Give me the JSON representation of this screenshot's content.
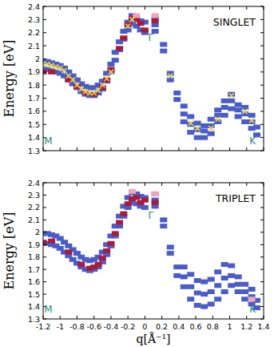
{
  "chart_data": [
    {
      "type": "scatter",
      "title": "SINGLET",
      "ylabel": "Energy [eV]",
      "xlim": [
        -1.2,
        1.4
      ],
      "xticks": [
        -1.2,
        -1,
        -0.8,
        -0.6,
        -0.4,
        -0.2,
        0,
        0.2,
        0.4,
        0.6,
        0.8,
        1,
        1.2,
        1.4
      ],
      "ylim": [
        1.3,
        2.4
      ],
      "yticks": [
        1.3,
        1.4,
        1.5,
        1.6,
        1.7,
        1.8,
        1.9,
        2,
        2.1,
        2.2,
        2.3,
        2.4
      ],
      "grid": false,
      "tick_labels": "y",
      "annotations": [
        {
          "text": "Γ",
          "x": 0.07,
          "y": 2.14
        },
        {
          "text": "M",
          "x": -1.14,
          "y": 1.35
        },
        {
          "text": "K",
          "x": 1.27,
          "y": 1.35
        }
      ],
      "series": [
        {
          "color": "#4a5cc8",
          "marker": "rect",
          "x": [
            -1.2,
            -1.2,
            -1.15,
            -1.15,
            -1.1,
            -1.1,
            -1.05,
            -1.05,
            -1.0,
            -1.0,
            -0.95,
            -0.95,
            -0.9,
            -0.9,
            -0.85,
            -0.85,
            -0.8,
            -0.8,
            -0.75,
            -0.75,
            -0.7,
            -0.7,
            -0.65,
            -0.65,
            -0.6,
            -0.6,
            -0.55,
            -0.55,
            -0.5,
            -0.5,
            -0.45,
            -0.45,
            -0.4,
            -0.4,
            -0.35,
            -0.35,
            -0.3,
            -0.3,
            -0.25,
            -0.25,
            -0.2,
            -0.2,
            -0.15,
            -0.15,
            -0.1,
            -0.1,
            -0.05,
            -0.05,
            0,
            0,
            0.12,
            0.12,
            0.12,
            0.22,
            0.22,
            0.3,
            0.3,
            0.38,
            0.38,
            0.46,
            0.46,
            0.46,
            0.54,
            0.54,
            0.54,
            0.62,
            0.62,
            0.62,
            0.7,
            0.7,
            0.7,
            0.78,
            0.78,
            0.78,
            0.86,
            0.86,
            0.86,
            0.94,
            0.94,
            0.94,
            1.02,
            1.02,
            1.02,
            1.1,
            1.1,
            1.1,
            1.18,
            1.18,
            1.18,
            1.26,
            1.26,
            1.26,
            1.32,
            1.32
          ],
          "values": [
            1.92,
            1.98,
            1.92,
            1.98,
            1.91,
            1.97,
            1.9,
            1.96,
            1.89,
            1.95,
            1.87,
            1.93,
            1.84,
            1.9,
            1.81,
            1.87,
            1.78,
            1.84,
            1.75,
            1.81,
            1.73,
            1.79,
            1.72,
            1.78,
            1.72,
            1.78,
            1.74,
            1.8,
            1.77,
            1.83,
            1.83,
            1.89,
            1.9,
            1.96,
            1.99,
            2.05,
            2.07,
            2.13,
            2.15,
            2.21,
            2.22,
            2.28,
            2.27,
            2.33,
            2.25,
            2.31,
            2.22,
            2.29,
            2.2,
            2.28,
            2.21,
            2.26,
            2.31,
            2.06,
            2.11,
            1.84,
            1.89,
            1.69,
            1.74,
            1.52,
            1.58,
            1.64,
            1.44,
            1.5,
            1.56,
            1.4,
            1.46,
            1.51,
            1.4,
            1.45,
            1.49,
            1.43,
            1.49,
            1.54,
            1.52,
            1.57,
            1.61,
            1.57,
            1.63,
            1.68,
            1.62,
            1.68,
            1.73,
            1.56,
            1.61,
            1.65,
            1.52,
            1.58,
            1.63,
            1.47,
            1.52,
            1.57,
            1.42,
            1.48
          ]
        },
        {
          "color": "#a81c3a",
          "marker": "rect",
          "x": [
            -1.2,
            -1.1,
            -0.9,
            -0.8,
            -0.7,
            -0.6,
            -0.5,
            -0.45,
            -0.4,
            -0.3,
            -0.25,
            -0.2,
            -0.15,
            -0.1,
            -0.05,
            0,
            0.12
          ],
          "values": [
            1.9,
            1.9,
            1.84,
            1.79,
            1.74,
            1.73,
            1.78,
            1.84,
            1.92,
            2.08,
            2.16,
            2.26,
            2.31,
            2.3,
            2.27,
            2.22,
            2.29
          ]
        },
        {
          "color": "#f0a6b8",
          "marker": "rect",
          "x": [
            -0.1,
            0.12
          ],
          "values": [
            2.33,
            2.33
          ]
        },
        {
          "color": "#e8d44a",
          "marker": "x",
          "x": [
            -1.2,
            -1.15,
            -1.1,
            -1.05,
            -1.0,
            -0.95,
            -0.9,
            -0.85,
            -0.8,
            -0.75,
            -0.7,
            -0.65,
            -0.6,
            -0.55,
            -0.5,
            -0.45,
            -0.4,
            -0.2,
            -0.15,
            0.3,
            0.54,
            0.62,
            0.78,
            0.86,
            1.02,
            1.18,
            1.26
          ],
          "values": [
            1.96,
            1.96,
            1.95,
            1.94,
            1.93,
            1.91,
            1.87,
            1.84,
            1.8,
            1.77,
            1.75,
            1.74,
            1.74,
            1.76,
            1.8,
            1.85,
            1.9,
            2.25,
            2.3,
            1.87,
            1.51,
            1.47,
            1.47,
            1.54,
            1.72,
            1.6,
            1.53
          ]
        }
      ]
    },
    {
      "type": "scatter",
      "title": "TRIPLET",
      "ylabel": "Energy [eV]",
      "xlabel": "q[Å⁻¹]",
      "xlim": [
        -1.2,
        1.4
      ],
      "xticks": [
        -1.2,
        -1,
        -0.8,
        -0.6,
        -0.4,
        -0.2,
        0,
        0.2,
        0.4,
        0.6,
        0.8,
        1,
        1.2,
        1.4
      ],
      "ylim": [
        1.3,
        2.4
      ],
      "yticks": [
        1.3,
        1.4,
        1.5,
        1.6,
        1.7,
        1.8,
        1.9,
        2,
        2.1,
        2.2,
        2.3,
        2.4
      ],
      "grid": false,
      "tick_labels": true,
      "annotations": [
        {
          "text": "Γ",
          "x": 0.07,
          "y": 2.11
        },
        {
          "text": "M",
          "x": -1.14,
          "y": 1.35
        },
        {
          "text": "K",
          "x": 1.27,
          "y": 1.35
        }
      ],
      "series": [
        {
          "color": "#4a5cc8",
          "marker": "rect",
          "x": [
            -1.2,
            -1.2,
            -1.15,
            -1.15,
            -1.1,
            -1.1,
            -1.05,
            -1.05,
            -1.0,
            -1.0,
            -0.95,
            -0.95,
            -0.9,
            -0.9,
            -0.85,
            -0.85,
            -0.8,
            -0.8,
            -0.75,
            -0.75,
            -0.7,
            -0.7,
            -0.65,
            -0.65,
            -0.6,
            -0.6,
            -0.55,
            -0.55,
            -0.5,
            -0.5,
            -0.45,
            -0.45,
            -0.4,
            -0.4,
            -0.35,
            -0.35,
            -0.3,
            -0.3,
            -0.25,
            -0.25,
            -0.2,
            -0.2,
            -0.15,
            -0.15,
            -0.1,
            -0.1,
            -0.05,
            -0.05,
            0,
            0,
            0.12,
            0.12,
            0.12,
            0.22,
            0.22,
            0.3,
            0.3,
            0.38,
            0.38,
            0.46,
            0.46,
            0.46,
            0.54,
            0.54,
            0.54,
            0.62,
            0.62,
            0.62,
            0.7,
            0.7,
            0.7,
            0.78,
            0.78,
            0.78,
            0.86,
            0.86,
            0.86,
            0.94,
            0.94,
            0.94,
            1.02,
            1.02,
            1.02,
            1.1,
            1.1,
            1.1,
            1.18,
            1.18,
            1.18,
            1.26,
            1.26,
            1.26,
            1.32,
            1.32
          ],
          "values": [
            1.91,
            1.99,
            1.91,
            1.99,
            1.9,
            1.98,
            1.89,
            1.97,
            1.87,
            1.95,
            1.84,
            1.92,
            1.81,
            1.89,
            1.78,
            1.86,
            1.75,
            1.83,
            1.72,
            1.8,
            1.7,
            1.78,
            1.69,
            1.77,
            1.7,
            1.78,
            1.72,
            1.8,
            1.76,
            1.84,
            1.82,
            1.9,
            1.89,
            1.97,
            1.97,
            2.05,
            2.05,
            2.13,
            2.13,
            2.21,
            2.2,
            2.28,
            2.24,
            2.32,
            2.23,
            2.31,
            2.21,
            2.29,
            2.2,
            2.28,
            2.21,
            2.26,
            2.31,
            2.05,
            2.1,
            1.83,
            1.88,
            1.65,
            1.72,
            1.56,
            1.64,
            1.72,
            1.46,
            1.56,
            1.66,
            1.41,
            1.51,
            1.61,
            1.4,
            1.5,
            1.6,
            1.42,
            1.52,
            1.62,
            1.46,
            1.57,
            1.68,
            1.52,
            1.63,
            1.74,
            1.57,
            1.65,
            1.73,
            1.52,
            1.58,
            1.64,
            1.46,
            1.52,
            1.58,
            1.42,
            1.48,
            1.54,
            1.39,
            1.45
          ]
        },
        {
          "color": "#a81c3a",
          "marker": "rect",
          "x": [
            -1.2,
            -1.1,
            -0.9,
            -0.75,
            -0.65,
            -0.6,
            -0.55,
            -0.5,
            -0.45,
            -0.4,
            -0.35,
            -0.3,
            -0.25,
            -0.2,
            -0.15,
            -0.1,
            -0.05,
            0,
            0.12
          ],
          "values": [
            1.92,
            1.93,
            1.84,
            1.74,
            1.71,
            1.72,
            1.74,
            1.79,
            1.85,
            1.91,
            1.99,
            2.08,
            2.15,
            2.23,
            2.27,
            2.28,
            2.24,
            2.26,
            2.24
          ]
        },
        {
          "color": "#f0a6b8",
          "marker": "rect",
          "x": [
            -0.15,
            0.12,
            1.26
          ],
          "values": [
            2.33,
            2.31,
            1.46
          ]
        }
      ]
    }
  ]
}
